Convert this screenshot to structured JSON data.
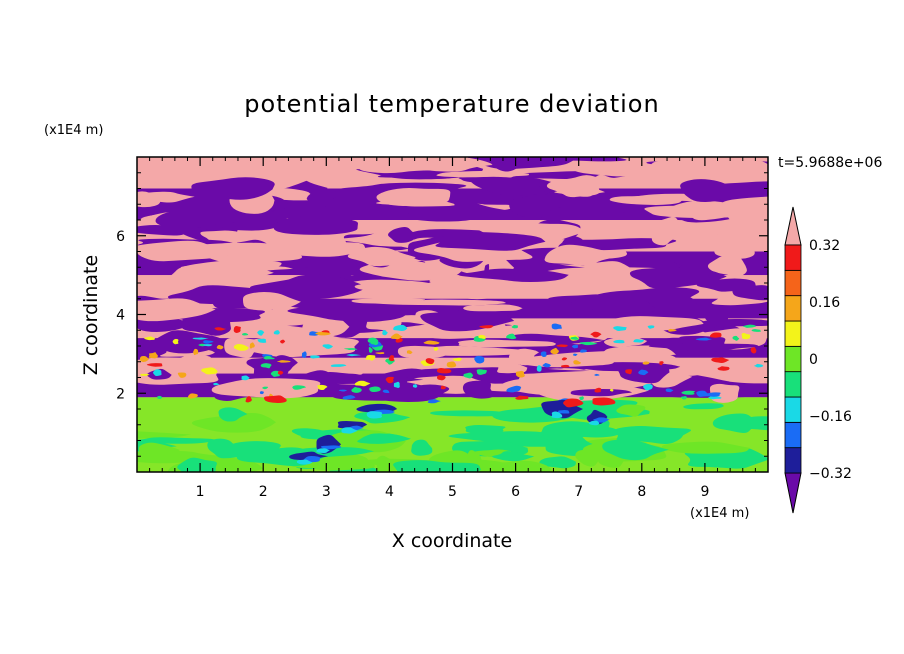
{
  "chart_data": {
    "type": "heatmap",
    "title": "potential temperature deviation",
    "xlabel": "X coordinate",
    "ylabel": "Z coordinate",
    "x_unit": "(x1E4 m)",
    "y_unit": "(x1E4 m)",
    "time_label": "t=5.9688e+06",
    "xlim": [
      0,
      10
    ],
    "ylim": [
      0,
      8
    ],
    "x_ticks": [
      "1",
      "2",
      "3",
      "4",
      "5",
      "6",
      "7",
      "8",
      "9"
    ],
    "y_ticks": [
      "2",
      "4",
      "6"
    ],
    "colorbar": {
      "levels": [
        -0.4,
        -0.32,
        -0.24,
        -0.16,
        -0.08,
        0,
        0.08,
        0.16,
        0.24,
        0.32,
        0.4
      ],
      "tick_labels": [
        "0.32",
        "0.16",
        "0",
        "−0.16",
        "−0.32"
      ],
      "colors_low_to_high": [
        "#6a0aa8",
        "#1e1e9a",
        "#1a6cf5",
        "#1ad9e6",
        "#18e07a",
        "#6ee626",
        "#f3f31a",
        "#f5a61a",
        "#f5641a",
        "#f01a1a",
        "#f4a8a8"
      ],
      "under_color": "#6a0aa8",
      "over_color": "#f4a8a8"
    },
    "field_description_regions": [
      {
        "z_range": [
          0,
          1.9
        ],
        "dominant_levels": [
          0,
          0.08
        ],
        "note": "lower layer mostly near 0 to +0.08 with patches near -0.08"
      },
      {
        "z_range": [
          1.9,
          8
        ],
        "dominant_levels": [
          -0.4,
          0.4
        ],
        "note": "upper layer alternating strongly negative and strongly positive bands"
      }
    ]
  }
}
